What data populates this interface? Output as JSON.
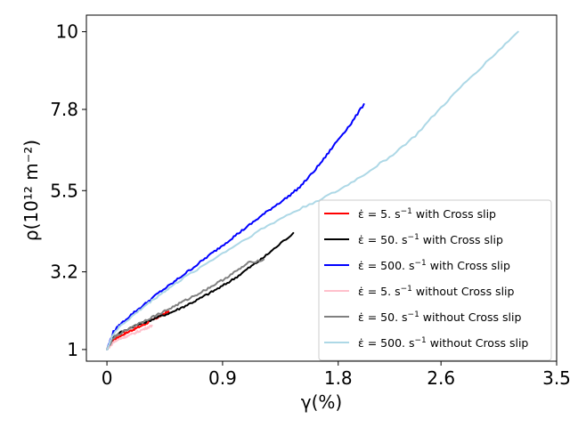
{
  "chart_data": {
    "type": "line",
    "title": "",
    "xlabel": "γ(%)",
    "ylabel": "ρ(10¹² m⁻²)",
    "xlim": [
      -0.16,
      3.5
    ],
    "ylim": [
      0.67,
      10.47
    ],
    "xticks": [
      0,
      0.9,
      1.8,
      2.6,
      3.5
    ],
    "xtick_labels": [
      "0",
      "0.9",
      "1.8",
      "2.6",
      "3.5"
    ],
    "yticks": [
      1,
      3.2,
      5.5,
      7.8,
      10
    ],
    "ytick_labels": [
      "1",
      "3.2",
      "5.5",
      "7.8",
      "10"
    ],
    "grid": false,
    "legend_position": "lower-right",
    "series": [
      {
        "name": "ε̇ = 5. s⁻¹ with Cross slip",
        "label_main": "ε̇ = 5. s",
        "label_sup": "−1",
        "label_tail": "with Cross slip",
        "color": "#ff0000",
        "x": [
          0,
          0.05,
          0.1,
          0.15,
          0.2,
          0.25,
          0.3,
          0.35,
          0.4,
          0.45,
          0.48
        ],
        "y": [
          1.0,
          1.28,
          1.38,
          1.47,
          1.56,
          1.64,
          1.73,
          1.83,
          1.92,
          2.02,
          2.08
        ]
      },
      {
        "name": "ε̇ = 50. s⁻¹ with Cross slip",
        "label_main": "ε̇ = 50. s",
        "label_sup": "−1",
        "label_tail": "with Cross slip",
        "color": "#000000",
        "x": [
          0,
          0.05,
          0.1,
          0.2,
          0.3,
          0.4,
          0.5,
          0.6,
          0.7,
          0.8,
          0.9,
          1.0,
          1.1,
          1.2,
          1.3,
          1.45
        ],
        "y": [
          1.0,
          1.35,
          1.47,
          1.65,
          1.78,
          1.92,
          2.05,
          2.22,
          2.4,
          2.6,
          2.8,
          3.03,
          3.3,
          3.55,
          3.85,
          4.3
        ]
      },
      {
        "name": "ε̇ = 500. s⁻¹ with Cross slip",
        "label_main": "ε̇ = 500. s",
        "label_sup": "−1",
        "label_tail": "with Cross slip",
        "color": "#0000ff",
        "x": [
          0,
          0.05,
          0.1,
          0.2,
          0.3,
          0.4,
          0.5,
          0.6,
          0.7,
          0.8,
          0.9,
          1.0,
          1.1,
          1.2,
          1.3,
          1.4,
          1.5,
          1.6,
          1.7,
          1.8,
          1.9,
          2.0
        ],
        "y": [
          1.0,
          1.5,
          1.7,
          2.02,
          2.3,
          2.6,
          2.85,
          3.13,
          3.4,
          3.68,
          3.95,
          4.23,
          4.5,
          4.78,
          5.05,
          5.3,
          5.6,
          6.0,
          6.45,
          6.95,
          7.4,
          7.95
        ]
      },
      {
        "name": "ε̇ = 5. s⁻¹ without Cross slip",
        "label_main": "ε̇ = 5. s",
        "label_sup": "−1",
        "label_tail": "without Cross slip",
        "color": "#ffc0cb",
        "x": [
          0,
          0.05,
          0.1,
          0.15,
          0.2,
          0.25,
          0.3,
          0.35
        ],
        "y": [
          1.0,
          1.2,
          1.3,
          1.37,
          1.44,
          1.52,
          1.6,
          1.68
        ]
      },
      {
        "name": "ε̇ = 50. s⁻¹ without Cross slip",
        "label_main": "ε̇ = 50. s",
        "label_sup": "−1",
        "label_tail": "without Cross slip",
        "color": "#808080",
        "x": [
          0,
          0.05,
          0.1,
          0.2,
          0.3,
          0.4,
          0.5,
          0.6,
          0.7,
          0.8,
          0.9,
          1.0,
          1.1,
          1.22
        ],
        "y": [
          1.0,
          1.32,
          1.45,
          1.65,
          1.83,
          2.0,
          2.18,
          2.37,
          2.56,
          2.76,
          2.97,
          3.2,
          3.45,
          3.55
        ]
      },
      {
        "name": "ε̇ = 500. s⁻¹ without Cross slip",
        "label_main": "ε̇ = 500. s",
        "label_sup": "−1",
        "label_tail": "without Cross slip",
        "color": "#add8e6",
        "x": [
          0,
          0.05,
          0.1,
          0.2,
          0.3,
          0.4,
          0.5,
          0.6,
          0.8,
          1.0,
          1.2,
          1.4,
          1.6,
          1.8,
          2.0,
          2.2,
          2.4,
          2.6,
          2.8,
          3.0,
          3.2
        ],
        "y": [
          1.0,
          1.45,
          1.65,
          1.95,
          2.25,
          2.52,
          2.78,
          3.03,
          3.5,
          3.95,
          4.4,
          4.8,
          5.15,
          5.5,
          5.95,
          6.45,
          7.05,
          7.85,
          8.6,
          9.3,
          10.0
        ]
      }
    ]
  }
}
